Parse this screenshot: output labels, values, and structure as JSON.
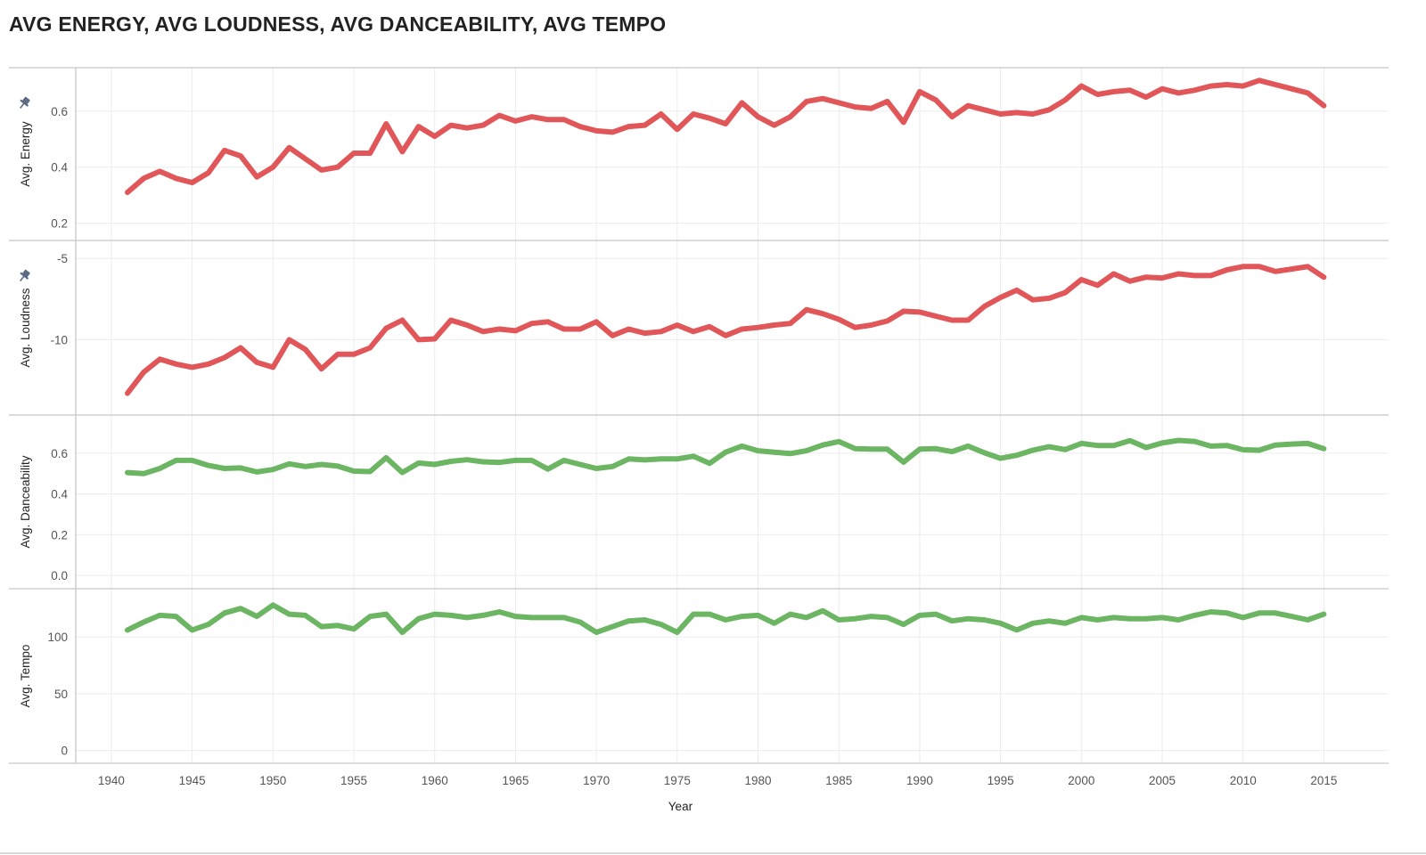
{
  "title": "AVG ENERGY,  AVG LOUDNESS, AVG DANCEABILITY, AVG TEMPO",
  "colors": {
    "red": "#e15759",
    "green": "#6bb563"
  },
  "chart_data": {
    "type": "line",
    "x": [
      1941,
      1942,
      1943,
      1944,
      1945,
      1946,
      1947,
      1948,
      1949,
      1950,
      1951,
      1952,
      1953,
      1954,
      1955,
      1956,
      1957,
      1958,
      1959,
      1960,
      1961,
      1962,
      1963,
      1964,
      1965,
      1966,
      1967,
      1968,
      1969,
      1970,
      1971,
      1972,
      1973,
      1974,
      1975,
      1976,
      1977,
      1978,
      1979,
      1980,
      1981,
      1982,
      1983,
      1984,
      1985,
      1986,
      1987,
      1988,
      1989,
      1990,
      1991,
      1992,
      1993,
      1994,
      1995,
      1996,
      1997,
      1998,
      1999,
      2000,
      2001,
      2002,
      2003,
      2004,
      2005,
      2006,
      2007,
      2008,
      2009,
      2010,
      2011,
      2012,
      2013,
      2014,
      2015
    ],
    "xlabel": "Year",
    "xticks": [
      "1940",
      "1945",
      "1950",
      "1955",
      "1960",
      "1965",
      "1970",
      "1975",
      "1980",
      "1985",
      "1990",
      "1995",
      "2000",
      "2005",
      "2010",
      "2015"
    ],
    "xlim": [
      1937.8,
      2019
    ],
    "grid": true,
    "panels": [
      {
        "ylabel": "Avg. Energy",
        "pinned": true,
        "color": "red",
        "ylim": [
          0.17,
          0.73
        ],
        "yticks": [
          "0.2",
          "0.4",
          "0.6"
        ],
        "values": [
          0.31,
          0.36,
          0.385,
          0.36,
          0.345,
          0.38,
          0.46,
          0.44,
          0.365,
          0.4,
          0.47,
          0.43,
          0.39,
          0.4,
          0.45,
          0.45,
          0.555,
          0.455,
          0.545,
          0.51,
          0.55,
          0.54,
          0.55,
          0.585,
          0.565,
          0.58,
          0.57,
          0.57,
          0.545,
          0.53,
          0.525,
          0.545,
          0.55,
          0.59,
          0.535,
          0.59,
          0.575,
          0.555,
          0.63,
          0.58,
          0.55,
          0.58,
          0.635,
          0.645,
          0.63,
          0.615,
          0.61,
          0.635,
          0.56,
          0.67,
          0.64,
          0.58,
          0.62,
          0.605,
          0.59,
          0.595,
          0.59,
          0.605,
          0.64,
          0.69,
          0.66,
          0.67,
          0.675,
          0.65,
          0.68,
          0.665,
          0.675,
          0.69,
          0.695,
          0.69,
          0.71,
          0.695,
          0.68,
          0.665,
          0.62
        ]
      },
      {
        "ylabel": "Avg. Loudness",
        "pinned": true,
        "color": "red",
        "ylim": [
          -14.2,
          -4.55
        ],
        "yticks": [
          "-5",
          "-10"
        ],
        "values": [
          -13.3,
          -12.0,
          -11.2,
          -11.5,
          -11.7,
          -11.5,
          -11.1,
          -10.5,
          -11.4,
          -11.7,
          -10.0,
          -10.6,
          -11.8,
          -10.9,
          -10.9,
          -10.5,
          -9.3,
          -8.8,
          -10.0,
          -9.95,
          -8.8,
          -9.1,
          -9.5,
          -9.35,
          -9.45,
          -9.0,
          -8.9,
          -9.35,
          -9.35,
          -8.9,
          -9.75,
          -9.35,
          -9.6,
          -9.5,
          -9.1,
          -9.5,
          -9.2,
          -9.75,
          -9.35,
          -9.25,
          -9.1,
          -9.0,
          -8.15,
          -8.4,
          -8.75,
          -9.25,
          -9.1,
          -8.85,
          -8.25,
          -8.3,
          -8.55,
          -8.8,
          -8.8,
          -7.95,
          -7.4,
          -6.95,
          -7.55,
          -7.45,
          -7.1,
          -6.3,
          -6.65,
          -5.95,
          -6.4,
          -6.15,
          -6.2,
          -5.95,
          -6.05,
          -6.05,
          -5.7,
          -5.5,
          -5.5,
          -5.8,
          -5.65,
          -5.5,
          -6.15
        ]
      },
      {
        "ylabel": "Avg. Danceability",
        "pinned": false,
        "color": "green",
        "ylim": [
          -0.03,
          0.735
        ],
        "yticks": [
          "0.0",
          "0.2",
          "0.4",
          "0.6"
        ],
        "values": [
          0.505,
          0.5,
          0.525,
          0.565,
          0.565,
          0.54,
          0.525,
          0.528,
          0.508,
          0.52,
          0.548,
          0.535,
          0.545,
          0.537,
          0.512,
          0.51,
          0.578,
          0.505,
          0.552,
          0.545,
          0.56,
          0.568,
          0.558,
          0.555,
          0.565,
          0.565,
          0.522,
          0.565,
          0.545,
          0.525,
          0.535,
          0.572,
          0.567,
          0.572,
          0.572,
          0.585,
          0.55,
          0.605,
          0.635,
          0.612,
          0.605,
          0.598,
          0.612,
          0.64,
          0.657,
          0.622,
          0.62,
          0.62,
          0.556,
          0.62,
          0.622,
          0.608,
          0.635,
          0.602,
          0.575,
          0.59,
          0.615,
          0.632,
          0.618,
          0.648,
          0.638,
          0.638,
          0.662,
          0.628,
          0.65,
          0.663,
          0.658,
          0.635,
          0.638,
          0.617,
          0.615,
          0.64,
          0.645,
          0.648,
          0.622
        ]
      },
      {
        "ylabel": "Avg. Tempo",
        "pinned": false,
        "color": "green",
        "ylim": [
          -5,
          133
        ],
        "yticks": [
          "0",
          "50",
          "100"
        ],
        "values": [
          106,
          113,
          119,
          118,
          106,
          111,
          121,
          125,
          118,
          128,
          120,
          119,
          109,
          110,
          107,
          118,
          120,
          104,
          116,
          120,
          119,
          117,
          119,
          122,
          118,
          117,
          117,
          117,
          113,
          104,
          109,
          114,
          115,
          111,
          104,
          120,
          120,
          115,
          118,
          119,
          112,
          120,
          117,
          123,
          115,
          116,
          118,
          117,
          111,
          119,
          120,
          114,
          116,
          115,
          112,
          106,
          112,
          114,
          112,
          117,
          115,
          117,
          116,
          116,
          117,
          115,
          119,
          122,
          121,
          117,
          121,
          121,
          118,
          115,
          120
        ]
      }
    ]
  }
}
